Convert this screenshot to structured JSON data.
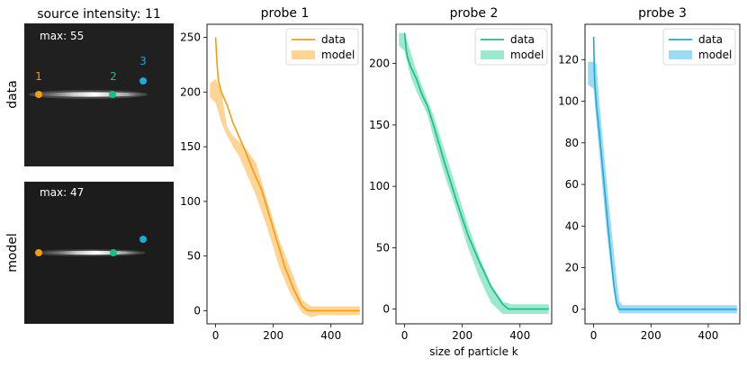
{
  "figure": {
    "left_title": "source intensity: 11",
    "row_labels": [
      "data",
      "model"
    ],
    "images": [
      {
        "max_label": "max: 55",
        "probe_labels": [
          "1",
          "2",
          "3"
        ]
      },
      {
        "max_label": "max: 47",
        "probe_labels": [
          "",
          "",
          ""
        ]
      }
    ],
    "colors": {
      "probe1": "#f39c12",
      "probe2": "#1abc8c",
      "probe3": "#20a8d8",
      "probe1_band": "#fed596",
      "probe2_band": "#9ee8cf",
      "probe3_band": "#9edbf3",
      "image_bg": "#202020"
    }
  },
  "chart_data": [
    {
      "type": "line",
      "title": "probe 1",
      "xlabel": "",
      "ylabel": "",
      "xlim": [
        -30,
        510
      ],
      "ylim": [
        -12,
        262
      ],
      "xticks": [
        0,
        200,
        400
      ],
      "yticks": [
        0,
        50,
        100,
        150,
        200,
        250
      ],
      "legend": {
        "position": "top-right",
        "entries": [
          "data",
          "model"
        ]
      },
      "series": [
        {
          "name": "data",
          "kind": "line",
          "x": [
            0,
            5,
            10,
            20,
            40,
            60,
            80,
            100,
            130,
            160,
            200,
            240,
            270,
            300,
            320,
            340,
            400,
            500
          ],
          "y": [
            250,
            225,
            210,
            200,
            188,
            172,
            160,
            148,
            128,
            110,
            75,
            40,
            20,
            4,
            0,
            0,
            0,
            0
          ]
        },
        {
          "name": "model",
          "kind": "band",
          "x": [
            -20,
            0,
            20,
            40,
            60,
            80,
            100,
            140,
            180,
            220,
            260,
            300,
            330,
            360,
            400,
            500
          ],
          "lower": [
            195,
            190,
            172,
            160,
            150,
            142,
            130,
            105,
            75,
            40,
            15,
            -2,
            -6,
            -4,
            -4,
            -4
          ],
          "upper": [
            208,
            212,
            200,
            168,
            160,
            155,
            150,
            135,
            100,
            65,
            38,
            10,
            4,
            4,
            4,
            4
          ]
        }
      ]
    },
    {
      "type": "line",
      "title": "probe 2",
      "xlabel": "size of particle k",
      "ylabel": "",
      "xlim": [
        -30,
        510
      ],
      "ylim": [
        -12,
        232
      ],
      "xticks": [
        0,
        200,
        400
      ],
      "yticks": [
        0,
        50,
        100,
        150,
        200
      ],
      "legend": {
        "position": "top-right",
        "entries": [
          "data",
          "model"
        ]
      },
      "series": [
        {
          "name": "data",
          "kind": "line",
          "x": [
            0,
            5,
            10,
            20,
            40,
            60,
            80,
            100,
            140,
            180,
            220,
            260,
            300,
            340,
            360,
            380,
            500
          ],
          "y": [
            225,
            212,
            205,
            198,
            188,
            175,
            165,
            150,
            118,
            88,
            60,
            38,
            18,
            4,
            0,
            0,
            0
          ]
        },
        {
          "name": "model",
          "kind": "band",
          "x": [
            -20,
            0,
            20,
            40,
            60,
            80,
            100,
            140,
            180,
            220,
            260,
            300,
            340,
            370,
            400,
            500
          ],
          "lower": [
            215,
            210,
            190,
            178,
            168,
            158,
            140,
            108,
            80,
            50,
            25,
            5,
            -4,
            -4,
            -4,
            -4
          ],
          "upper": [
            225,
            225,
            210,
            195,
            182,
            170,
            158,
            128,
            98,
            68,
            42,
            20,
            6,
            4,
            4,
            4
          ]
        }
      ]
    },
    {
      "type": "line",
      "title": "probe 3",
      "xlabel": "",
      "ylabel": "",
      "xlim": [
        -30,
        510
      ],
      "ylim": [
        -7,
        137
      ],
      "xticks": [
        0,
        200,
        400
      ],
      "yticks": [
        0,
        20,
        40,
        60,
        80,
        100,
        120
      ],
      "legend": {
        "position": "top-right",
        "entries": [
          "data",
          "model"
        ]
      },
      "series": [
        {
          "name": "data",
          "kind": "line",
          "x": [
            0,
            3,
            6,
            10,
            20,
            30,
            40,
            50,
            60,
            70,
            80,
            90,
            100,
            500
          ],
          "y": [
            131,
            112,
            105,
            98,
            85,
            70,
            55,
            40,
            26,
            12,
            3,
            0,
            0,
            0
          ]
        },
        {
          "name": "model",
          "kind": "band",
          "x": [
            -20,
            0,
            10,
            20,
            30,
            40,
            50,
            60,
            70,
            80,
            90,
            100,
            350,
            400,
            500
          ],
          "lower": [
            108,
            106,
            90,
            75,
            60,
            45,
            32,
            20,
            9,
            1,
            -2,
            -2,
            -2,
            -2,
            -2
          ],
          "upper": [
            119,
            119,
            118,
            100,
            85,
            70,
            55,
            42,
            28,
            15,
            4,
            2,
            2,
            2,
            2
          ]
        }
      ]
    }
  ]
}
